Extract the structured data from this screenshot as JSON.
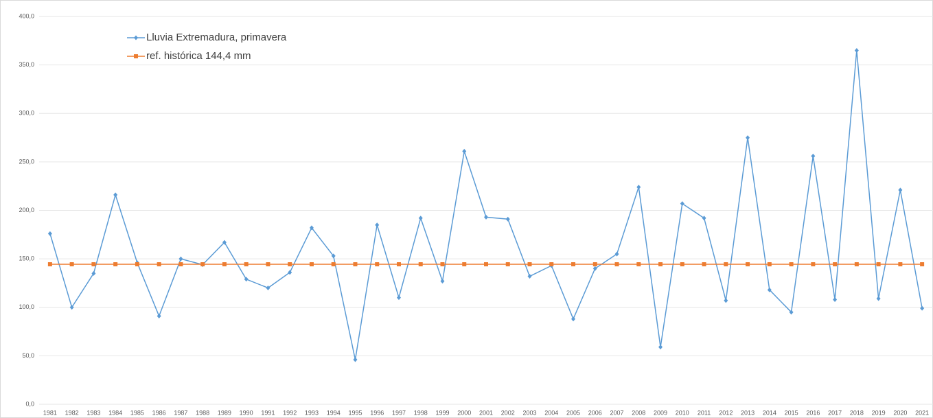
{
  "chart_data": {
    "type": "line",
    "categories": [
      "1981",
      "1982",
      "1983",
      "1984",
      "1985",
      "1986",
      "1987",
      "1988",
      "1989",
      "1990",
      "1991",
      "1992",
      "1993",
      "1994",
      "1995",
      "1996",
      "1997",
      "1998",
      "1999",
      "2000",
      "2001",
      "2002",
      "2003",
      "2004",
      "2005",
      "2006",
      "2007",
      "2008",
      "2009",
      "2010",
      "2011",
      "2012",
      "2013",
      "2014",
      "2015",
      "2016",
      "2017",
      "2018",
      "2019",
      "2020",
      "2021"
    ],
    "series": [
      {
        "name": "Lluvia Extremadura, primavera",
        "color": "#5b9bd5",
        "marker": "diamond",
        "values": [
          176,
          100,
          135,
          216,
          146,
          91,
          150,
          144,
          167,
          129,
          120,
          136,
          182,
          153,
          46,
          185,
          110,
          192,
          127,
          261,
          193,
          191,
          132,
          143,
          88,
          140,
          155,
          224,
          59,
          207,
          192,
          107,
          275,
          118,
          95,
          256,
          108,
          365,
          109,
          221,
          99
        ]
      },
      {
        "name": "ref. histórica 144,4 mm",
        "color": "#ed7d31",
        "marker": "square",
        "values": [
          144.4,
          144.4,
          144.4,
          144.4,
          144.4,
          144.4,
          144.4,
          144.4,
          144.4,
          144.4,
          144.4,
          144.4,
          144.4,
          144.4,
          144.4,
          144.4,
          144.4,
          144.4,
          144.4,
          144.4,
          144.4,
          144.4,
          144.4,
          144.4,
          144.4,
          144.4,
          144.4,
          144.4,
          144.4,
          144.4,
          144.4,
          144.4,
          144.4,
          144.4,
          144.4,
          144.4,
          144.4,
          144.4,
          144.4,
          144.4,
          144.4
        ]
      }
    ],
    "ylim": [
      0,
      400
    ],
    "yticks": [
      {
        "value": 0,
        "label": "0,0"
      },
      {
        "value": 50,
        "label": "50,0"
      },
      {
        "value": 100,
        "label": "100,0"
      },
      {
        "value": 150,
        "label": "150,0"
      },
      {
        "value": 200,
        "label": "200,0"
      },
      {
        "value": 250,
        "label": "250,0"
      },
      {
        "value": 300,
        "label": "300,0"
      },
      {
        "value": 350,
        "label": "350,0"
      },
      {
        "value": 400,
        "label": "400,0"
      }
    ],
    "grid": true,
    "legend": "top-left"
  }
}
